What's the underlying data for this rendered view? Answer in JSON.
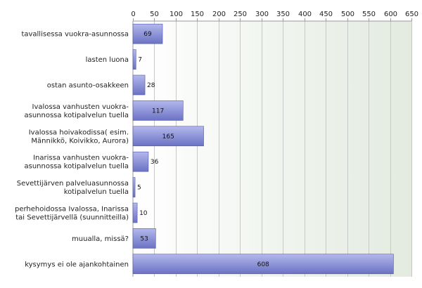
{
  "chart_data": {
    "type": "bar",
    "orientation": "horizontal",
    "categories": [
      [
        "tavallisessa vuokra-asunnossa"
      ],
      [
        "lasten luona"
      ],
      [
        "ostan asunto-osakkeen"
      ],
      [
        "Ivalossa vanhusten vuokra-",
        "asunnossa kotipalvelun tuella"
      ],
      [
        "Ivalossa hoivakodissa( esim.",
        "Männikkö, Koivikko, Aurora)"
      ],
      [
        "Inarissa vanhusten vuokra-",
        "asunnossa kotipalvelun tuella"
      ],
      [
        "Sevettijärven palveluasunnossa",
        "kotipalvelun tuella"
      ],
      [
        "perhehoidossa Ivalossa, Inarissa",
        "tai Sevettijärvellä (suunnitteilla)"
      ],
      [
        "muualla, missä?"
      ],
      [
        "kysymys ei ole ajankohtainen"
      ]
    ],
    "values": [
      69,
      7,
      28,
      117,
      165,
      36,
      5,
      10,
      53,
      608
    ],
    "value_labels": [
      "69",
      "7",
      "28",
      "117",
      "165",
      "36",
      "5",
      "10",
      "53",
      "608"
    ],
    "xlim": [
      0,
      650
    ],
    "ticks": [
      0,
      50,
      100,
      150,
      200,
      250,
      300,
      350,
      400,
      450,
      500,
      550,
      600,
      650
    ],
    "tick_labels": [
      "0",
      "50",
      "100",
      "150",
      "200",
      "250",
      "300",
      "350",
      "400",
      "450",
      "500",
      "550",
      "600",
      "650"
    ],
    "axis_position": "top",
    "grid": true,
    "colors": {
      "bar_light": "#b3b8ec",
      "bar_dark": "#6b72c4",
      "bar_border": "#5058a8",
      "plot_bg_left": "#ffffff",
      "plot_bg_right": "#e3ebe0",
      "grid": "#c8c8c8",
      "axis": "#999999"
    }
  }
}
